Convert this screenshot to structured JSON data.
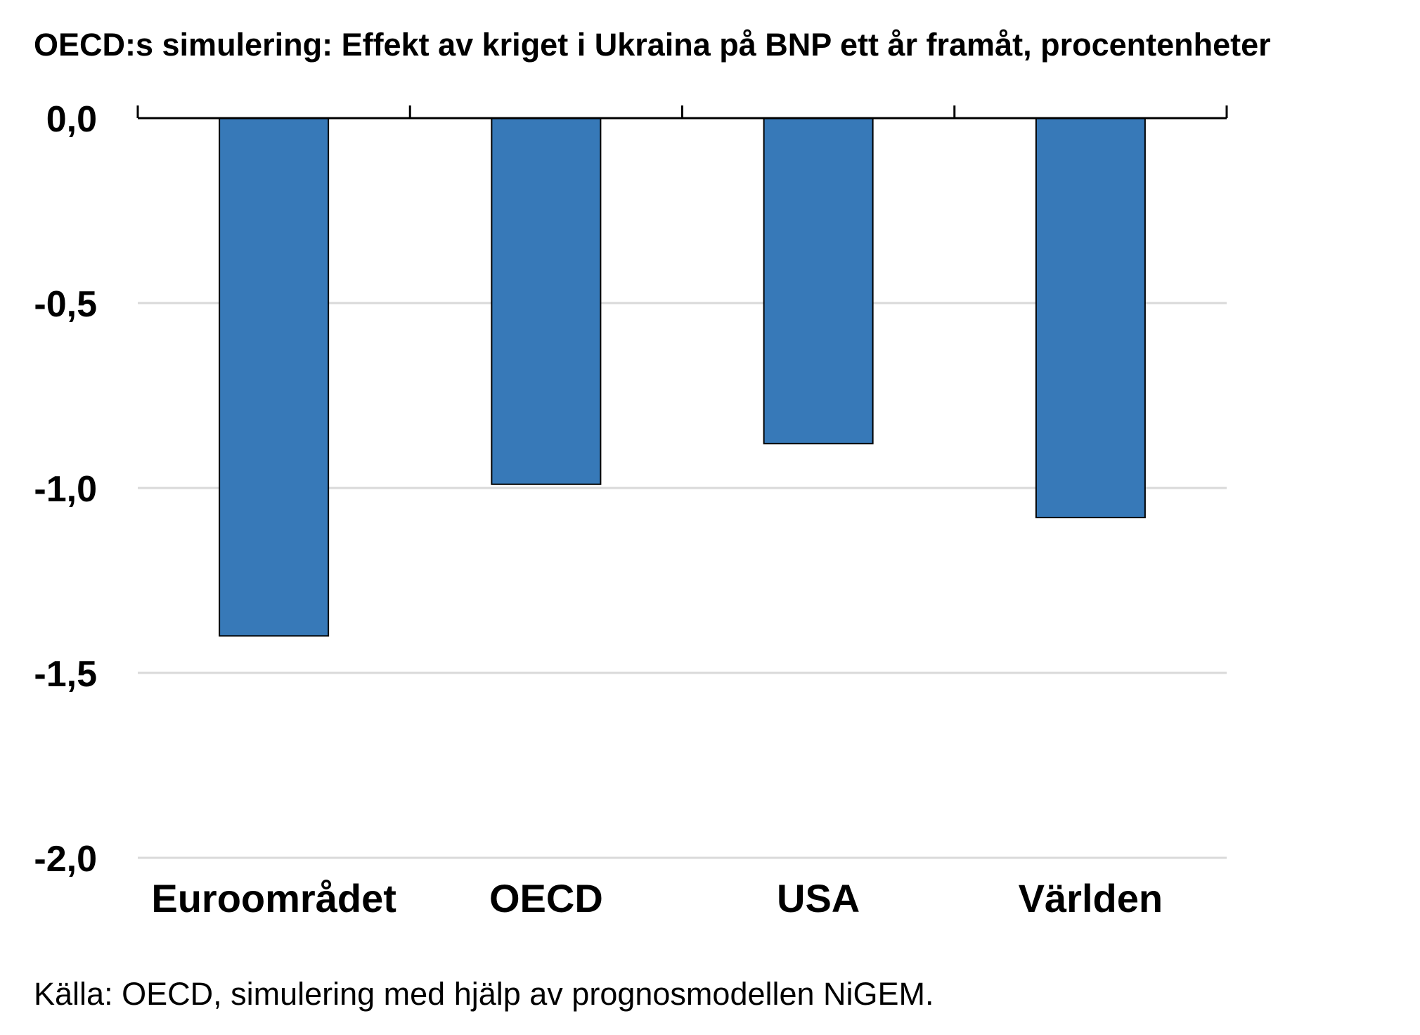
{
  "title": "OECD:s simulering: Effekt av kriget i Ukraina på BNP ett år framåt, procentenheter",
  "source": "Källa: OECD, simulering med hjälp av prognosmodellen NiGEM.",
  "chart_data": {
    "type": "bar",
    "title": "OECD:s simulering: Effekt av kriget i Ukraina på BNP ett år framåt, procentenheter",
    "categories": [
      "Euroområdet",
      "OECD",
      "USA",
      "Världen"
    ],
    "values": [
      -1.4,
      -0.99,
      -0.88,
      -1.08
    ],
    "ylim": [
      -2.0,
      0.0
    ],
    "yticks": [
      0.0,
      -0.5,
      -1.0,
      -1.5,
      -2.0
    ],
    "ytick_labels": [
      "0,0",
      "-0,5",
      "-1,0",
      "-1,5",
      "-2,0"
    ],
    "grid": true,
    "bar_color": "#3779b8",
    "grid_color": "#d9d9d9"
  }
}
